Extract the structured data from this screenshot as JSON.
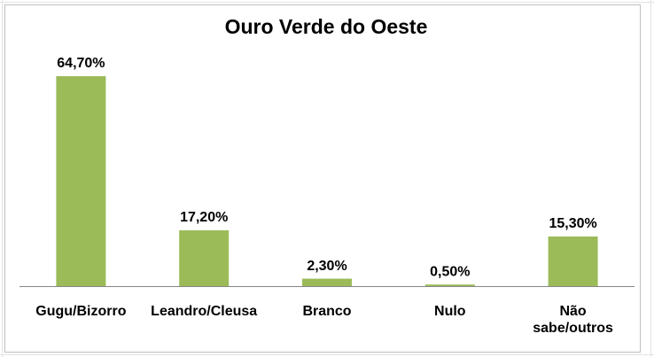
{
  "chart_data": {
    "type": "bar",
    "title": "Ouro Verde do Oeste",
    "categories": [
      "Gugu/Bizorro",
      "Leandro/Cleusa",
      "Branco",
      "Nulo",
      "Não sabe/outros"
    ],
    "values": [
      64.7,
      17.2,
      2.3,
      0.5,
      15.3
    ],
    "value_labels": [
      "64,70%",
      "17,20%",
      "2,30%",
      "0,50%",
      "15,30%"
    ],
    "color": "#9bbb59"
  }
}
